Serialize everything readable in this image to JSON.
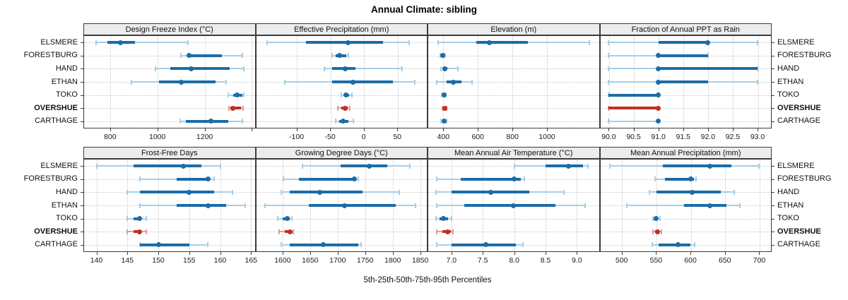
{
  "title": "Annual Climate: sibling",
  "xlabel": "5th-25th-50th-75th-95th Percentiles",
  "percentile_labels": [
    "5th",
    "25th",
    "50th",
    "75th",
    "95th"
  ],
  "locations": [
    "ELSMERE",
    "FORESTBURG",
    "HAND",
    "ETHAN",
    "TOKO",
    "OVERSHUE",
    "CARTHAGE"
  ],
  "highlight": "OVERSHUE",
  "colors": {
    "series": "#1b6ca8",
    "series_light": "#a8cee4",
    "highlight": "#bf3026",
    "highlight_light": "#e59a92",
    "grid": "#c9c9c9",
    "strip_bg": "#ececec",
    "border": "#3c3c3c",
    "text": "#1a1a1a"
  },
  "chart_data": [
    {
      "type": "percentile-dotplot",
      "title": "Design Freeze Index (°C)",
      "row": 0,
      "col": 0,
      "xlim": [
        690,
        1412
      ],
      "ticks": [
        800,
        1000,
        1200,
        1400
      ],
      "tick_labels": [
        "800",
        "1000",
        "1200",
        ""
      ],
      "series": [
        {
          "name": "ELSMERE",
          "p": [
            740,
            790,
            845,
            905,
            1130
          ]
        },
        {
          "name": "FORESTBURG",
          "p": [
            1100,
            1125,
            1133,
            1273,
            1360
          ]
        },
        {
          "name": "HAND",
          "p": [
            991,
            1055,
            1142,
            1305,
            1366
          ]
        },
        {
          "name": "ETHAN",
          "p": [
            891,
            1006,
            1102,
            1246,
            1290
          ]
        },
        {
          "name": "TOKO",
          "p": [
            1300,
            1320,
            1337,
            1359,
            1366
          ]
        },
        {
          "name": "OVERSHUE",
          "p": [
            1303,
            1310,
            1318,
            1354,
            1362
          ]
        },
        {
          "name": "CARTHAGE",
          "p": [
            1097,
            1122,
            1226,
            1301,
            1360
          ]
        }
      ]
    },
    {
      "type": "percentile-dotplot",
      "title": "Effective Precipitation (mm)",
      "row": 0,
      "col": 1,
      "xlim": [
        -160,
        94
      ],
      "ticks": [
        -100,
        -50,
        0,
        50
      ],
      "tick_labels": [
        "-100",
        "-50",
        "0",
        "50"
      ],
      "series": [
        {
          "name": "ELSMERE",
          "p": [
            -144,
            -86,
            -23,
            29,
            68
          ]
        },
        {
          "name": "FORESTBURG",
          "p": [
            -47,
            -42,
            -36,
            -26,
            -23
          ]
        },
        {
          "name": "HAND",
          "p": [
            -59,
            -47,
            -28,
            -12,
            57
          ]
        },
        {
          "name": "ETHAN",
          "p": [
            -117,
            -47,
            -16,
            44,
            76
          ]
        },
        {
          "name": "TOKO",
          "p": [
            -33,
            -29,
            -26,
            -22,
            -18
          ]
        },
        {
          "name": "OVERSHUE",
          "p": [
            -39,
            -33,
            -28,
            -24,
            -21
          ]
        },
        {
          "name": "CARTHAGE",
          "p": [
            -42,
            -36,
            -31,
            -23,
            -15
          ]
        }
      ]
    },
    {
      "type": "percentile-dotplot",
      "title": "Elevation (m)",
      "row": 0,
      "col": 2,
      "xlim": [
        313,
        1300
      ],
      "ticks": [
        400,
        600,
        800,
        1000
      ],
      "tick_labels": [
        "400",
        "600",
        "800",
        "1000"
      ],
      "series": [
        {
          "name": "ELSMERE",
          "p": [
            370,
            590,
            668,
            890,
            1243
          ]
        },
        {
          "name": "FORESTBURG",
          "p": [
            384,
            392,
            398,
            404,
            412
          ]
        },
        {
          "name": "HAND",
          "p": [
            388,
            398,
            408,
            422,
            485
          ]
        },
        {
          "name": "ETHAN",
          "p": [
            362,
            420,
            460,
            506,
            568
          ]
        },
        {
          "name": "TOKO",
          "p": [
            390,
            398,
            404,
            410,
            416
          ]
        },
        {
          "name": "OVERSHUE",
          "p": [
            394,
            401,
            407,
            413,
            419
          ]
        },
        {
          "name": "CARTHAGE",
          "p": [
            386,
            396,
            403,
            411,
            421
          ]
        }
      ]
    },
    {
      "type": "percentile-dotplot",
      "title": "Fraction of Annual PPT as Rain",
      "row": 0,
      "col": 3,
      "xlim": [
        89.83,
        93.27
      ],
      "ticks": [
        90,
        90.5,
        91,
        91.5,
        92,
        92.5,
        93
      ],
      "tick_labels": [
        "90.0",
        "90.5",
        "91.0",
        "91.5",
        "92.0",
        "92.5",
        "93.0"
      ],
      "series": [
        {
          "name": "ELSMERE",
          "p": [
            90,
            91,
            92,
            92,
            93
          ]
        },
        {
          "name": "FORESTBURG",
          "p": [
            90,
            91,
            91,
            92,
            92
          ]
        },
        {
          "name": "HAND",
          "p": [
            90,
            91,
            91,
            93,
            93
          ]
        },
        {
          "name": "ETHAN",
          "p": [
            90,
            91,
            91,
            92,
            93
          ]
        },
        {
          "name": "TOKO",
          "p": [
            90,
            90,
            91,
            91,
            91
          ]
        },
        {
          "name": "OVERSHUE",
          "p": [
            90,
            90,
            91,
            91,
            91
          ]
        },
        {
          "name": "CARTHAGE",
          "p": [
            90,
            91,
            91,
            91,
            91
          ]
        }
      ]
    },
    {
      "type": "percentile-dotplot",
      "title": "Frost-Free Days",
      "row": 1,
      "col": 0,
      "xlim": [
        138,
        165.6
      ],
      "ticks": [
        140,
        145,
        150,
        155,
        160,
        165
      ],
      "tick_labels": [
        "140",
        "145",
        "150",
        "155",
        "160",
        "165"
      ],
      "series": [
        {
          "name": "ELSMERE",
          "p": [
            140,
            146,
            154,
            157,
            160
          ]
        },
        {
          "name": "FORESTBURG",
          "p": [
            147,
            153,
            158,
            158,
            159
          ]
        },
        {
          "name": "HAND",
          "p": [
            145,
            147,
            155,
            159,
            162
          ]
        },
        {
          "name": "ETHAN",
          "p": [
            147,
            153,
            158,
            161,
            164
          ]
        },
        {
          "name": "TOKO",
          "p": [
            145,
            146,
            147,
            147,
            148
          ]
        },
        {
          "name": "OVERSHUE",
          "p": [
            145,
            146,
            147,
            147,
            148
          ]
        },
        {
          "name": "CARTHAGE",
          "p": [
            147,
            147,
            150,
            155,
            158
          ]
        }
      ]
    },
    {
      "type": "percentile-dotplot",
      "title": "Growing Degree Days (°C)",
      "row": 1,
      "col": 1,
      "xlim": [
        1552,
        1862
      ],
      "ticks": [
        1600,
        1650,
        1700,
        1750,
        1800,
        1850
      ],
      "tick_labels": [
        "1600",
        "1650",
        "1700",
        "1750",
        "1800",
        "1850"
      ],
      "series": [
        {
          "name": "ELSMERE",
          "p": [
            1636,
            1705,
            1758,
            1790,
            1831
          ]
        },
        {
          "name": "FORESTBURG",
          "p": [
            1601,
            1630,
            1730,
            1734,
            1738
          ]
        },
        {
          "name": "HAND",
          "p": [
            1598,
            1613,
            1668,
            1745,
            1812
          ]
        },
        {
          "name": "ETHAN",
          "p": [
            1568,
            1647,
            1713,
            1805,
            1841
          ]
        },
        {
          "name": "TOKO",
          "p": [
            1591,
            1600,
            1609,
            1613,
            1617
          ]
        },
        {
          "name": "OVERSHUE",
          "p": [
            1594,
            1604,
            1613,
            1616,
            1619
          ]
        },
        {
          "name": "CARTHAGE",
          "p": [
            1597,
            1613,
            1674,
            1737,
            1743
          ]
        }
      ]
    },
    {
      "type": "percentile-dotplot",
      "title": "Mean Annual Air Temperature (°C)",
      "row": 1,
      "col": 2,
      "xlim": [
        6.63,
        9.35
      ],
      "ticks": [
        7,
        7.5,
        8,
        8.5,
        9
      ],
      "tick_labels": [
        "7.0",
        "7.5",
        "8.0",
        "8.5",
        "9.0"
      ],
      "series": [
        {
          "name": "ELSMERE",
          "p": [
            8.0,
            8.5,
            8.87,
            9.1,
            9.17
          ]
        },
        {
          "name": "FORESTBURG",
          "p": [
            6.77,
            7.15,
            8.0,
            8.11,
            8.16
          ]
        },
        {
          "name": "HAND",
          "p": [
            6.75,
            7.0,
            7.63,
            8.24,
            8.79
          ]
        },
        {
          "name": "ETHAN",
          "p": [
            6.77,
            7.21,
            7.99,
            8.66,
            9.13
          ]
        },
        {
          "name": "TOKO",
          "p": [
            6.75,
            6.81,
            6.87,
            6.94,
            7.0
          ]
        },
        {
          "name": "OVERSHUE",
          "p": [
            6.76,
            6.85,
            6.94,
            6.99,
            7.02
          ]
        },
        {
          "name": "CARTHAGE",
          "p": [
            6.77,
            7.0,
            7.55,
            8.03,
            8.14
          ]
        }
      ]
    },
    {
      "type": "percentile-dotplot",
      "title": "Mean Annual Precipitation (mm)",
      "row": 1,
      "col": 3,
      "xlim": [
        469,
        717
      ],
      "ticks": [
        500,
        550,
        600,
        650,
        700
      ],
      "tick_labels": [
        "500",
        "550",
        "600",
        "650",
        "700"
      ],
      "series": [
        {
          "name": "ELSMERE",
          "p": [
            483,
            560,
            628,
            660,
            700
          ]
        },
        {
          "name": "FORESTBURG",
          "p": [
            549,
            563,
            600,
            605,
            608
          ]
        },
        {
          "name": "HAND",
          "p": [
            540,
            551,
            602,
            644,
            664
          ]
        },
        {
          "name": "ETHAN",
          "p": [
            507,
            591,
            628,
            652,
            672
          ]
        },
        {
          "name": "TOKO",
          "p": [
            545,
            547,
            550,
            553,
            556
          ]
        },
        {
          "name": "OVERSHUE",
          "p": [
            546,
            549,
            552,
            555,
            558
          ]
        },
        {
          "name": "CARTHAGE",
          "p": [
            544,
            554,
            582,
            600,
            606
          ]
        }
      ]
    }
  ]
}
